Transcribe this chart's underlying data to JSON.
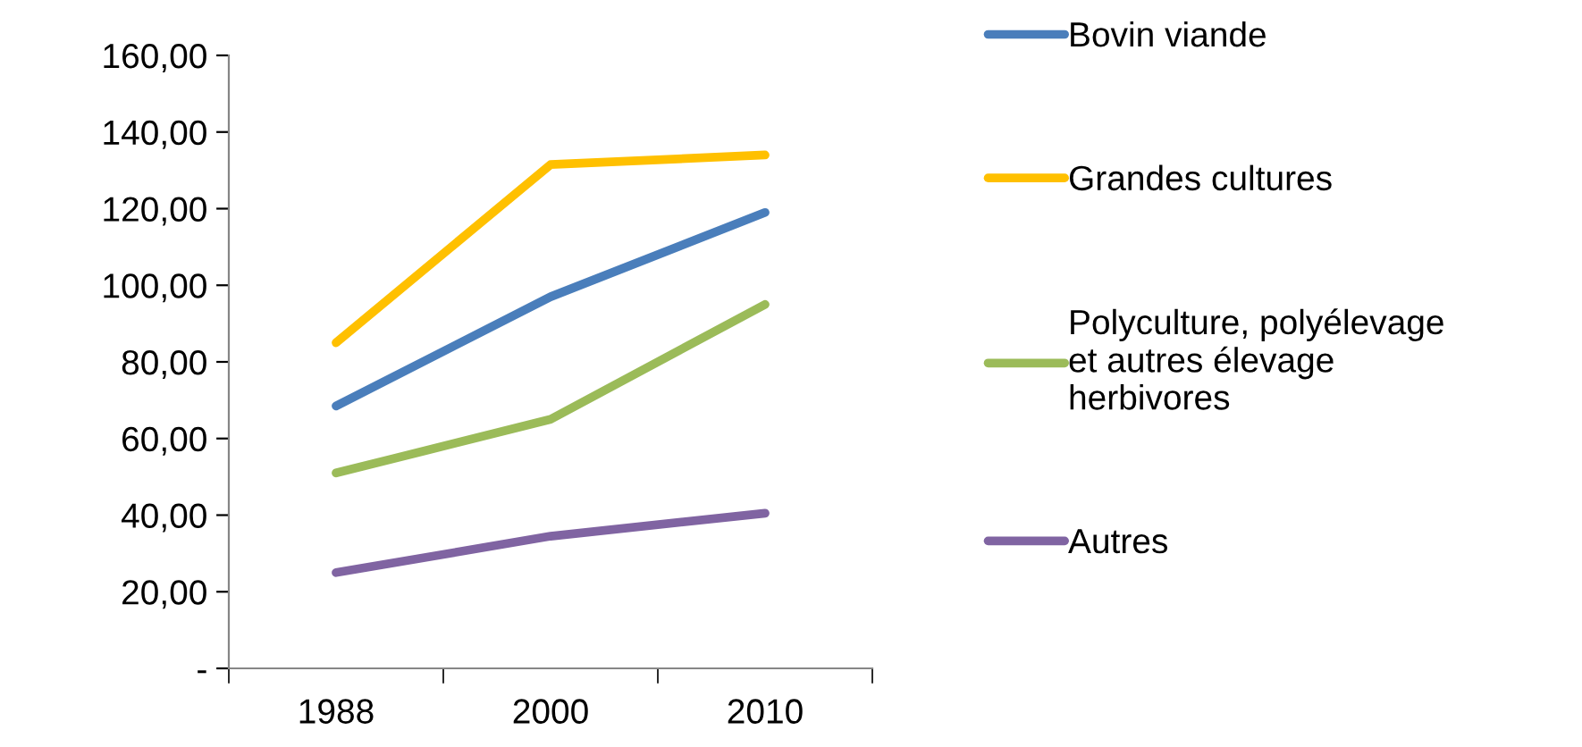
{
  "chart_data": {
    "type": "line",
    "categories": [
      "1988",
      "2000",
      "2010"
    ],
    "series": [
      {
        "name": "Bovin viande",
        "color": "#4a7ebb",
        "values": [
          68.5,
          97,
          119
        ]
      },
      {
        "name": "Grandes cultures",
        "color": "#ffc000",
        "values": [
          85,
          131.5,
          134
        ]
      },
      {
        "name": "Polyculture, polyélevage\net autres élevage\nherbivores",
        "color": "#9bbb59",
        "values": [
          51,
          65,
          95
        ]
      },
      {
        "name": "Autres",
        "color": "#8064a2",
        "values": [
          25,
          34.5,
          40.5
        ]
      }
    ],
    "ylim": [
      0,
      160
    ],
    "yticks": [
      {
        "value": 0,
        "label": "-"
      },
      {
        "value": 20,
        "label": "20,00"
      },
      {
        "value": 40,
        "label": "40,00"
      },
      {
        "value": 60,
        "label": "60,00"
      },
      {
        "value": 80,
        "label": "80,00"
      },
      {
        "value": 100,
        "label": "100,00"
      },
      {
        "value": 120,
        "label": "120,00"
      },
      {
        "value": 140,
        "label": "140,00"
      },
      {
        "value": 160,
        "label": "160,00"
      }
    ],
    "grid": false,
    "legend": "right",
    "marker": "none",
    "line_style": "solid"
  }
}
